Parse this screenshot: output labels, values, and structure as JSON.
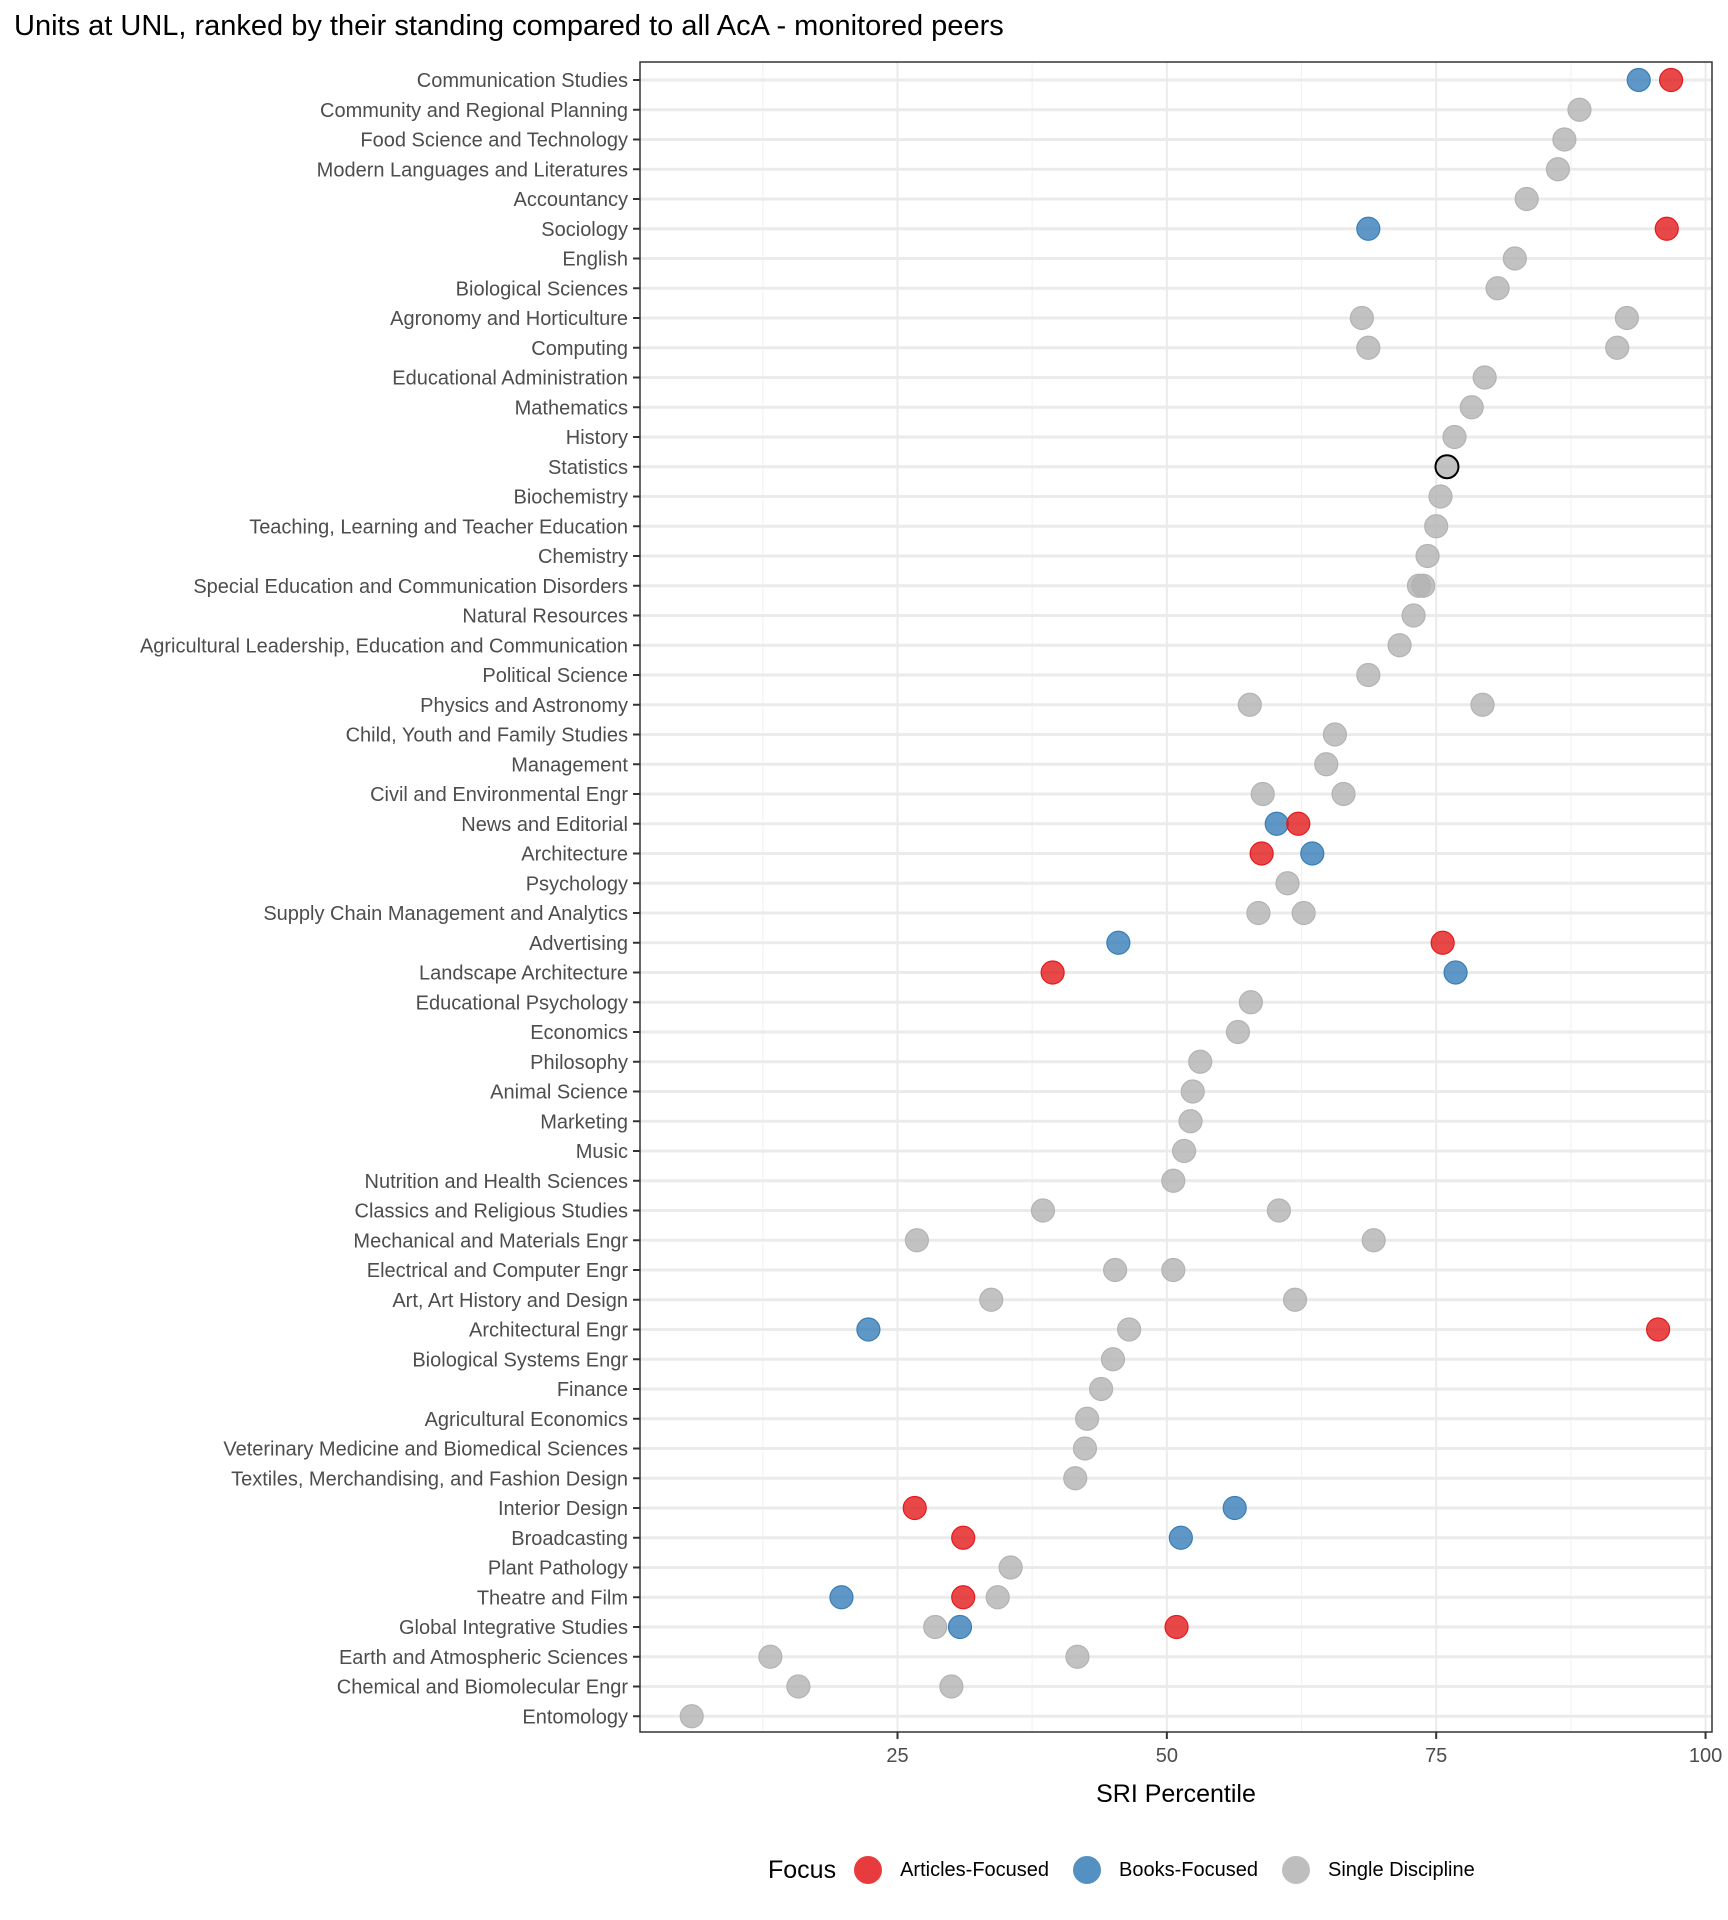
{
  "chart_data": {
    "type": "scatter",
    "title": "Units at UNL, ranked by their standing compared to all AcA - monitored peers",
    "xlabel": "SRI Percentile",
    "ylabel": "",
    "xlim": [
      1.1,
      100.6
    ],
    "x_ticks": [
      25,
      50,
      75,
      100
    ],
    "grid": true,
    "legend": {
      "title": "Focus",
      "placement": "bottom",
      "entries": [
        {
          "name": "Articles-Focused",
          "color": "#e41a1c"
        },
        {
          "name": "Books-Focused",
          "color": "#377eb8"
        },
        {
          "name": "Single Discipline",
          "color": "#b3b3b3"
        }
      ]
    },
    "highlight": "Statistics",
    "categories": [
      "Communication Studies",
      "Community and Regional Planning",
      "Food Science and Technology",
      "Modern Languages and Literatures",
      "Accountancy",
      "Sociology",
      "English",
      "Biological Sciences",
      "Agronomy and Horticulture",
      "Computing",
      "Educational Administration",
      "Mathematics",
      "History",
      "Statistics",
      "Biochemistry",
      "Teaching, Learning and Teacher Education",
      "Chemistry",
      "Special Education and Communication Disorders",
      "Natural Resources",
      "Agricultural Leadership, Education and Communication",
      "Political Science",
      "Physics and Astronomy",
      "Child, Youth and Family Studies",
      "Management",
      "Civil and Environmental Engr",
      "News and Editorial",
      "Architecture",
      "Psychology",
      "Supply Chain Management and Analytics",
      "Advertising",
      "Landscape Architecture",
      "Educational Psychology",
      "Economics",
      "Philosophy",
      "Animal Science",
      "Marketing",
      "Music",
      "Nutrition and Health Sciences",
      "Classics and Religious Studies",
      "Mechanical and Materials Engr",
      "Electrical and Computer Engr",
      "Art, Art History and Design",
      "Architectural Engr",
      "Biological Systems Engr",
      "Finance",
      "Agricultural Economics",
      "Veterinary Medicine and Biomedical Sciences",
      "Textiles, Merchandising, and Fashion Design",
      "Interior Design",
      "Broadcasting",
      "Plant Pathology",
      "Theatre and Film",
      "Global Integrative Studies",
      "Earth and Atmospheric Sciences",
      "Chemical and Biomolecular Engr",
      "Entomology"
    ],
    "points": [
      {
        "unit": "Communication Studies",
        "focus": "Books-Focused",
        "x": 93.8
      },
      {
        "unit": "Communication Studies",
        "focus": "Articles-Focused",
        "x": 96.8
      },
      {
        "unit": "Community and Regional Planning",
        "focus": "Single Discipline",
        "x": 88.3
      },
      {
        "unit": "Food Science and Technology",
        "focus": "Single Discipline",
        "x": 86.9
      },
      {
        "unit": "Modern Languages and Literatures",
        "focus": "Single Discipline",
        "x": 86.3
      },
      {
        "unit": "Accountancy",
        "focus": "Single Discipline",
        "x": 83.4
      },
      {
        "unit": "Sociology",
        "focus": "Books-Focused",
        "x": 68.7
      },
      {
        "unit": "Sociology",
        "focus": "Articles-Focused",
        "x": 96.4
      },
      {
        "unit": "English",
        "focus": "Single Discipline",
        "x": 82.3
      },
      {
        "unit": "Biological Sciences",
        "focus": "Single Discipline",
        "x": 80.7
      },
      {
        "unit": "Agronomy and Horticulture",
        "focus": "Single Discipline",
        "x": 68.1
      },
      {
        "unit": "Agronomy and Horticulture",
        "focus": "Single Discipline",
        "x": 92.7
      },
      {
        "unit": "Computing",
        "focus": "Single Discipline",
        "x": 68.7
      },
      {
        "unit": "Computing",
        "focus": "Single Discipline",
        "x": 91.8
      },
      {
        "unit": "Educational Administration",
        "focus": "Single Discipline",
        "x": 79.5
      },
      {
        "unit": "Mathematics",
        "focus": "Single Discipline",
        "x": 78.3
      },
      {
        "unit": "History",
        "focus": "Single Discipline",
        "x": 76.7
      },
      {
        "unit": "Statistics",
        "focus": "Single Discipline",
        "x": 76.0
      },
      {
        "unit": "Biochemistry",
        "focus": "Single Discipline",
        "x": 75.4
      },
      {
        "unit": "Teaching, Learning and Teacher Education",
        "focus": "Single Discipline",
        "x": 75.0
      },
      {
        "unit": "Chemistry",
        "focus": "Single Discipline",
        "x": 74.2
      },
      {
        "unit": "Special Education and Communication Disorders",
        "focus": "Single Discipline",
        "x": 73.4
      },
      {
        "unit": "Special Education and Communication Disorders",
        "focus": "Single Discipline",
        "x": 73.8
      },
      {
        "unit": "Natural Resources",
        "focus": "Single Discipline",
        "x": 72.9
      },
      {
        "unit": "Agricultural Leadership, Education and Communication",
        "focus": "Single Discipline",
        "x": 71.6
      },
      {
        "unit": "Political Science",
        "focus": "Single Discipline",
        "x": 68.7
      },
      {
        "unit": "Physics and Astronomy",
        "focus": "Single Discipline",
        "x": 57.7
      },
      {
        "unit": "Physics and Astronomy",
        "focus": "Single Discipline",
        "x": 79.3
      },
      {
        "unit": "Child, Youth and Family Studies",
        "focus": "Single Discipline",
        "x": 65.6
      },
      {
        "unit": "Management",
        "focus": "Single Discipline",
        "x": 64.8
      },
      {
        "unit": "Civil and Environmental Engr",
        "focus": "Single Discipline",
        "x": 58.9
      },
      {
        "unit": "Civil and Environmental Engr",
        "focus": "Single Discipline",
        "x": 66.4
      },
      {
        "unit": "News and Editorial",
        "focus": "Books-Focused",
        "x": 60.2
      },
      {
        "unit": "News and Editorial",
        "focus": "Articles-Focused",
        "x": 62.2
      },
      {
        "unit": "Architecture",
        "focus": "Articles-Focused",
        "x": 58.8
      },
      {
        "unit": "Architecture",
        "focus": "Books-Focused",
        "x": 63.5
      },
      {
        "unit": "Psychology",
        "focus": "Single Discipline",
        "x": 61.2
      },
      {
        "unit": "Supply Chain Management and Analytics",
        "focus": "Single Discipline",
        "x": 58.5
      },
      {
        "unit": "Supply Chain Management and Analytics",
        "focus": "Single Discipline",
        "x": 62.7
      },
      {
        "unit": "Advertising",
        "focus": "Books-Focused",
        "x": 45.5
      },
      {
        "unit": "Advertising",
        "focus": "Articles-Focused",
        "x": 75.6
      },
      {
        "unit": "Landscape Architecture",
        "focus": "Articles-Focused",
        "x": 39.4
      },
      {
        "unit": "Landscape Architecture",
        "focus": "Books-Focused",
        "x": 76.8
      },
      {
        "unit": "Educational Psychology",
        "focus": "Single Discipline",
        "x": 57.8
      },
      {
        "unit": "Economics",
        "focus": "Single Discipline",
        "x": 56.6
      },
      {
        "unit": "Philosophy",
        "focus": "Single Discipline",
        "x": 53.1
      },
      {
        "unit": "Animal Science",
        "focus": "Single Discipline",
        "x": 52.4
      },
      {
        "unit": "Marketing",
        "focus": "Single Discipline",
        "x": 52.2
      },
      {
        "unit": "Music",
        "focus": "Single Discipline",
        "x": 51.6
      },
      {
        "unit": "Nutrition and Health Sciences",
        "focus": "Single Discipline",
        "x": 50.6
      },
      {
        "unit": "Classics and Religious Studies",
        "focus": "Single Discipline",
        "x": 38.5
      },
      {
        "unit": "Classics and Religious Studies",
        "focus": "Single Discipline",
        "x": 60.4
      },
      {
        "unit": "Mechanical and Materials Engr",
        "focus": "Single Discipline",
        "x": 26.8
      },
      {
        "unit": "Mechanical and Materials Engr",
        "focus": "Single Discipline",
        "x": 69.2
      },
      {
        "unit": "Electrical and Computer Engr",
        "focus": "Single Discipline",
        "x": 45.2
      },
      {
        "unit": "Electrical and Computer Engr",
        "focus": "Single Discipline",
        "x": 50.6
      },
      {
        "unit": "Art, Art History and Design",
        "focus": "Single Discipline",
        "x": 33.7
      },
      {
        "unit": "Art, Art History and Design",
        "focus": "Single Discipline",
        "x": 61.9
      },
      {
        "unit": "Architectural Engr",
        "focus": "Books-Focused",
        "x": 22.3
      },
      {
        "unit": "Architectural Engr",
        "focus": "Single Discipline",
        "x": 46.5
      },
      {
        "unit": "Architectural Engr",
        "focus": "Articles-Focused",
        "x": 95.6
      },
      {
        "unit": "Biological Systems Engr",
        "focus": "Single Discipline",
        "x": 45.0
      },
      {
        "unit": "Finance",
        "focus": "Single Discipline",
        "x": 43.9
      },
      {
        "unit": "Agricultural Economics",
        "focus": "Single Discipline",
        "x": 42.6
      },
      {
        "unit": "Veterinary Medicine and Biomedical Sciences",
        "focus": "Single Discipline",
        "x": 42.4
      },
      {
        "unit": "Textiles, Merchandising, and Fashion Design",
        "focus": "Single Discipline",
        "x": 41.5
      },
      {
        "unit": "Interior Design",
        "focus": "Articles-Focused",
        "x": 26.6
      },
      {
        "unit": "Interior Design",
        "focus": "Books-Focused",
        "x": 56.3
      },
      {
        "unit": "Broadcasting",
        "focus": "Articles-Focused",
        "x": 31.1
      },
      {
        "unit": "Broadcasting",
        "focus": "Books-Focused",
        "x": 51.3
      },
      {
        "unit": "Plant Pathology",
        "focus": "Single Discipline",
        "x": 35.5
      },
      {
        "unit": "Theatre and Film",
        "focus": "Books-Focused",
        "x": 19.8
      },
      {
        "unit": "Theatre and Film",
        "focus": "Articles-Focused",
        "x": 31.1
      },
      {
        "unit": "Theatre and Film",
        "focus": "Single Discipline",
        "x": 34.3
      },
      {
        "unit": "Global Integrative Studies",
        "focus": "Single Discipline",
        "x": 28.5
      },
      {
        "unit": "Global Integrative Studies",
        "focus": "Books-Focused",
        "x": 30.8
      },
      {
        "unit": "Global Integrative Studies",
        "focus": "Articles-Focused",
        "x": 50.9
      },
      {
        "unit": "Earth and Atmospheric Sciences",
        "focus": "Single Discipline",
        "x": 13.2
      },
      {
        "unit": "Earth and Atmospheric Sciences",
        "focus": "Single Discipline",
        "x": 41.7
      },
      {
        "unit": "Chemical and Biomolecular Engr",
        "focus": "Single Discipline",
        "x": 15.8
      },
      {
        "unit": "Chemical and Biomolecular Engr",
        "focus": "Single Discipline",
        "x": 30.0
      },
      {
        "unit": "Entomology",
        "focus": "Single Discipline",
        "x": 5.9
      }
    ]
  }
}
